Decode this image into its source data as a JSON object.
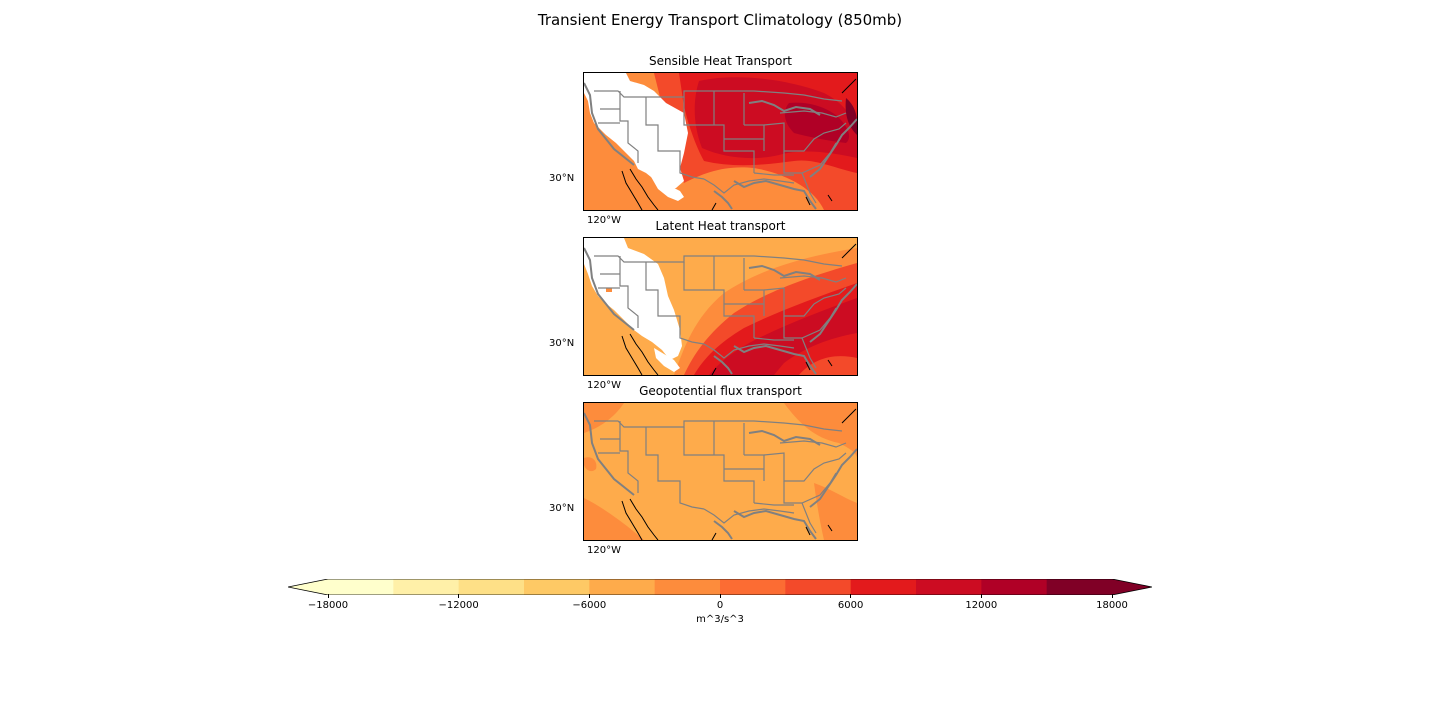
{
  "figure": {
    "title": "Transient Energy Transport Climatology (850mb)"
  },
  "panels": [
    {
      "title": "Sensible Heat Transport",
      "lat_label": "30°N",
      "lon_label": "120°W",
      "style": "sensible"
    },
    {
      "title": "Latent Heat transport",
      "lat_label": "30°N",
      "lon_label": "120°W",
      "style": "latent"
    },
    {
      "title": "Geopotential flux transport",
      "lat_label": "30°N",
      "lon_label": "120°W",
      "style": "geopotential"
    }
  ],
  "colorbar": {
    "label": "m^3/s^3",
    "ticks": [
      "−18000",
      "−12000",
      "−6000",
      "0",
      "6000",
      "12000",
      "18000"
    ],
    "levels": [
      -18000,
      -15000,
      -12000,
      -9000,
      -6000,
      -3000,
      0,
      3000,
      6000,
      9000,
      12000,
      15000,
      18000
    ],
    "colors": [
      "#ffffcc",
      "#fff0a8",
      "#fee087",
      "#fec965",
      "#feab4b",
      "#fd8c3c",
      "#fc6c33",
      "#f34a2a",
      "#e31a1c",
      "#cc0c22",
      "#b00026",
      "#800026"
    ],
    "extend": "both",
    "under_color": "#ffffcc",
    "over_color": "#800026"
  },
  "colors": {
    "state_borders": "#808080",
    "coastline": "#000000",
    "missing": "#ffffff"
  }
}
